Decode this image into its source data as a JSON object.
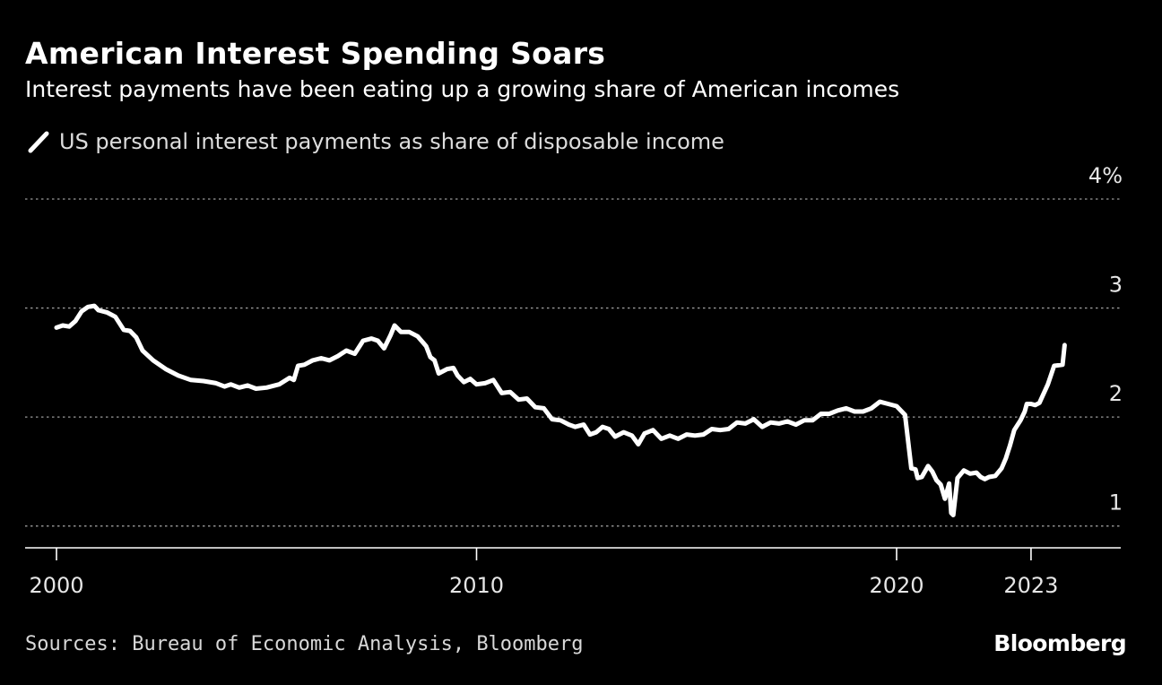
{
  "chart_data": {
    "type": "line",
    "title": "American Interest Spending Soars",
    "subtitle": "Interest payments have been eating up a growing share of American incomes",
    "legend": [
      "US personal interest payments as share of disposable income"
    ],
    "xlabel": "",
    "ylabel": "",
    "xlim": [
      1999.75,
      2024.7
    ],
    "ylim": [
      0.8,
      4
    ],
    "yticks": [
      {
        "value": 1,
        "label": "1"
      },
      {
        "value": 2,
        "label": "2"
      },
      {
        "value": 3,
        "label": "3"
      },
      {
        "value": 4,
        "label": "4%"
      }
    ],
    "xticks": [
      {
        "value": 2000,
        "label": "2000"
      },
      {
        "value": 2010,
        "label": "2010"
      },
      {
        "value": 2020,
        "label": "2020"
      },
      {
        "value": 2023.2,
        "label": "2023"
      }
    ],
    "grid": true,
    "series": [
      {
        "name": "US personal interest payments as share of disposable income",
        "color": "#ffffff",
        "points": [
          [
            2000.0,
            2.82
          ],
          [
            2000.15,
            2.84
          ],
          [
            2000.3,
            2.83
          ],
          [
            2000.45,
            2.88
          ],
          [
            2000.6,
            2.97
          ],
          [
            2000.75,
            3.01
          ],
          [
            2000.9,
            3.02
          ],
          [
            2001.0,
            2.98
          ],
          [
            2001.2,
            2.96
          ],
          [
            2001.4,
            2.92
          ],
          [
            2001.6,
            2.8
          ],
          [
            2001.75,
            2.79
          ],
          [
            2001.9,
            2.73
          ],
          [
            2002.05,
            2.61
          ],
          [
            2002.3,
            2.52
          ],
          [
            2002.6,
            2.44
          ],
          [
            2002.9,
            2.38
          ],
          [
            2003.2,
            2.34
          ],
          [
            2003.5,
            2.33
          ],
          [
            2003.8,
            2.31
          ],
          [
            2004.0,
            2.28
          ],
          [
            2004.15,
            2.3
          ],
          [
            2004.35,
            2.27
          ],
          [
            2004.55,
            2.29
          ],
          [
            2004.75,
            2.26
          ],
          [
            2005.0,
            2.27
          ],
          [
            2005.3,
            2.3
          ],
          [
            2005.55,
            2.36
          ],
          [
            2005.65,
            2.34
          ],
          [
            2005.75,
            2.47
          ],
          [
            2005.9,
            2.48
          ],
          [
            2006.1,
            2.52
          ],
          [
            2006.3,
            2.54
          ],
          [
            2006.5,
            2.52
          ],
          [
            2006.7,
            2.56
          ],
          [
            2006.9,
            2.61
          ],
          [
            2007.1,
            2.58
          ],
          [
            2007.3,
            2.7
          ],
          [
            2007.5,
            2.72
          ],
          [
            2007.65,
            2.7
          ],
          [
            2007.8,
            2.63
          ],
          [
            2007.95,
            2.75
          ],
          [
            2008.05,
            2.84
          ],
          [
            2008.2,
            2.78
          ],
          [
            2008.4,
            2.78
          ],
          [
            2008.6,
            2.74
          ],
          [
            2008.8,
            2.65
          ],
          [
            2008.9,
            2.55
          ],
          [
            2009.0,
            2.52
          ],
          [
            2009.1,
            2.4
          ],
          [
            2009.3,
            2.44
          ],
          [
            2009.45,
            2.45
          ],
          [
            2009.55,
            2.38
          ],
          [
            2009.7,
            2.32
          ],
          [
            2009.85,
            2.35
          ],
          [
            2010.0,
            2.3
          ],
          [
            2010.2,
            2.31
          ],
          [
            2010.4,
            2.34
          ],
          [
            2010.6,
            2.22
          ],
          [
            2010.8,
            2.23
          ],
          [
            2011.0,
            2.16
          ],
          [
            2011.2,
            2.17
          ],
          [
            2011.4,
            2.09
          ],
          [
            2011.6,
            2.08
          ],
          [
            2011.8,
            1.98
          ],
          [
            2012.0,
            1.97
          ],
          [
            2012.2,
            1.93
          ],
          [
            2012.35,
            1.91
          ],
          [
            2012.55,
            1.93
          ],
          [
            2012.7,
            1.84
          ],
          [
            2012.85,
            1.86
          ],
          [
            2013.0,
            1.91
          ],
          [
            2013.15,
            1.89
          ],
          [
            2013.3,
            1.82
          ],
          [
            2013.5,
            1.86
          ],
          [
            2013.7,
            1.83
          ],
          [
            2013.85,
            1.75
          ],
          [
            2014.0,
            1.85
          ],
          [
            2014.2,
            1.88
          ],
          [
            2014.4,
            1.8
          ],
          [
            2014.6,
            1.83
          ],
          [
            2014.8,
            1.8
          ],
          [
            2015.0,
            1.84
          ],
          [
            2015.2,
            1.83
          ],
          [
            2015.4,
            1.84
          ],
          [
            2015.6,
            1.89
          ],
          [
            2015.8,
            1.88
          ],
          [
            2016.0,
            1.89
          ],
          [
            2016.2,
            1.95
          ],
          [
            2016.4,
            1.94
          ],
          [
            2016.6,
            1.98
          ],
          [
            2016.8,
            1.91
          ],
          [
            2017.0,
            1.95
          ],
          [
            2017.2,
            1.94
          ],
          [
            2017.4,
            1.96
          ],
          [
            2017.6,
            1.93
          ],
          [
            2017.8,
            1.97
          ],
          [
            2018.0,
            1.97
          ],
          [
            2018.2,
            2.03
          ],
          [
            2018.4,
            2.03
          ],
          [
            2018.6,
            2.06
          ],
          [
            2018.8,
            2.08
          ],
          [
            2019.0,
            2.05
          ],
          [
            2019.2,
            2.05
          ],
          [
            2019.4,
            2.08
          ],
          [
            2019.6,
            2.14
          ],
          [
            2019.8,
            2.12
          ],
          [
            2020.0,
            2.1
          ],
          [
            2020.2,
            2.02
          ],
          [
            2020.35,
            1.53
          ],
          [
            2020.45,
            1.52
          ],
          [
            2020.5,
            1.44
          ],
          [
            2020.6,
            1.45
          ],
          [
            2020.75,
            1.55
          ],
          [
            2020.85,
            1.5
          ],
          [
            2020.95,
            1.42
          ],
          [
            2021.05,
            1.38
          ],
          [
            2021.15,
            1.25
          ],
          [
            2021.25,
            1.39
          ],
          [
            2021.3,
            1.12
          ],
          [
            2021.35,
            1.1
          ],
          [
            2021.45,
            1.44
          ],
          [
            2021.6,
            1.51
          ],
          [
            2021.75,
            1.48
          ],
          [
            2021.9,
            1.49
          ],
          [
            2022.0,
            1.45
          ],
          [
            2022.1,
            1.43
          ],
          [
            2022.2,
            1.45
          ],
          [
            2022.35,
            1.46
          ],
          [
            2022.5,
            1.53
          ],
          [
            2022.6,
            1.62
          ],
          [
            2022.7,
            1.74
          ],
          [
            2022.8,
            1.88
          ],
          [
            2022.95,
            1.97
          ],
          [
            2023.05,
            2.05
          ],
          [
            2023.1,
            2.12
          ],
          [
            2023.2,
            2.12
          ],
          [
            2023.3,
            2.11
          ],
          [
            2023.4,
            2.13
          ],
          [
            2023.6,
            2.3
          ],
          [
            2023.75,
            2.47
          ],
          [
            2023.95,
            2.48
          ],
          [
            2024.0,
            2.66
          ]
        ]
      }
    ]
  },
  "footer": {
    "source": "Sources: Bureau of Economic Analysis, Bloomberg",
    "brand": "Bloomberg"
  }
}
